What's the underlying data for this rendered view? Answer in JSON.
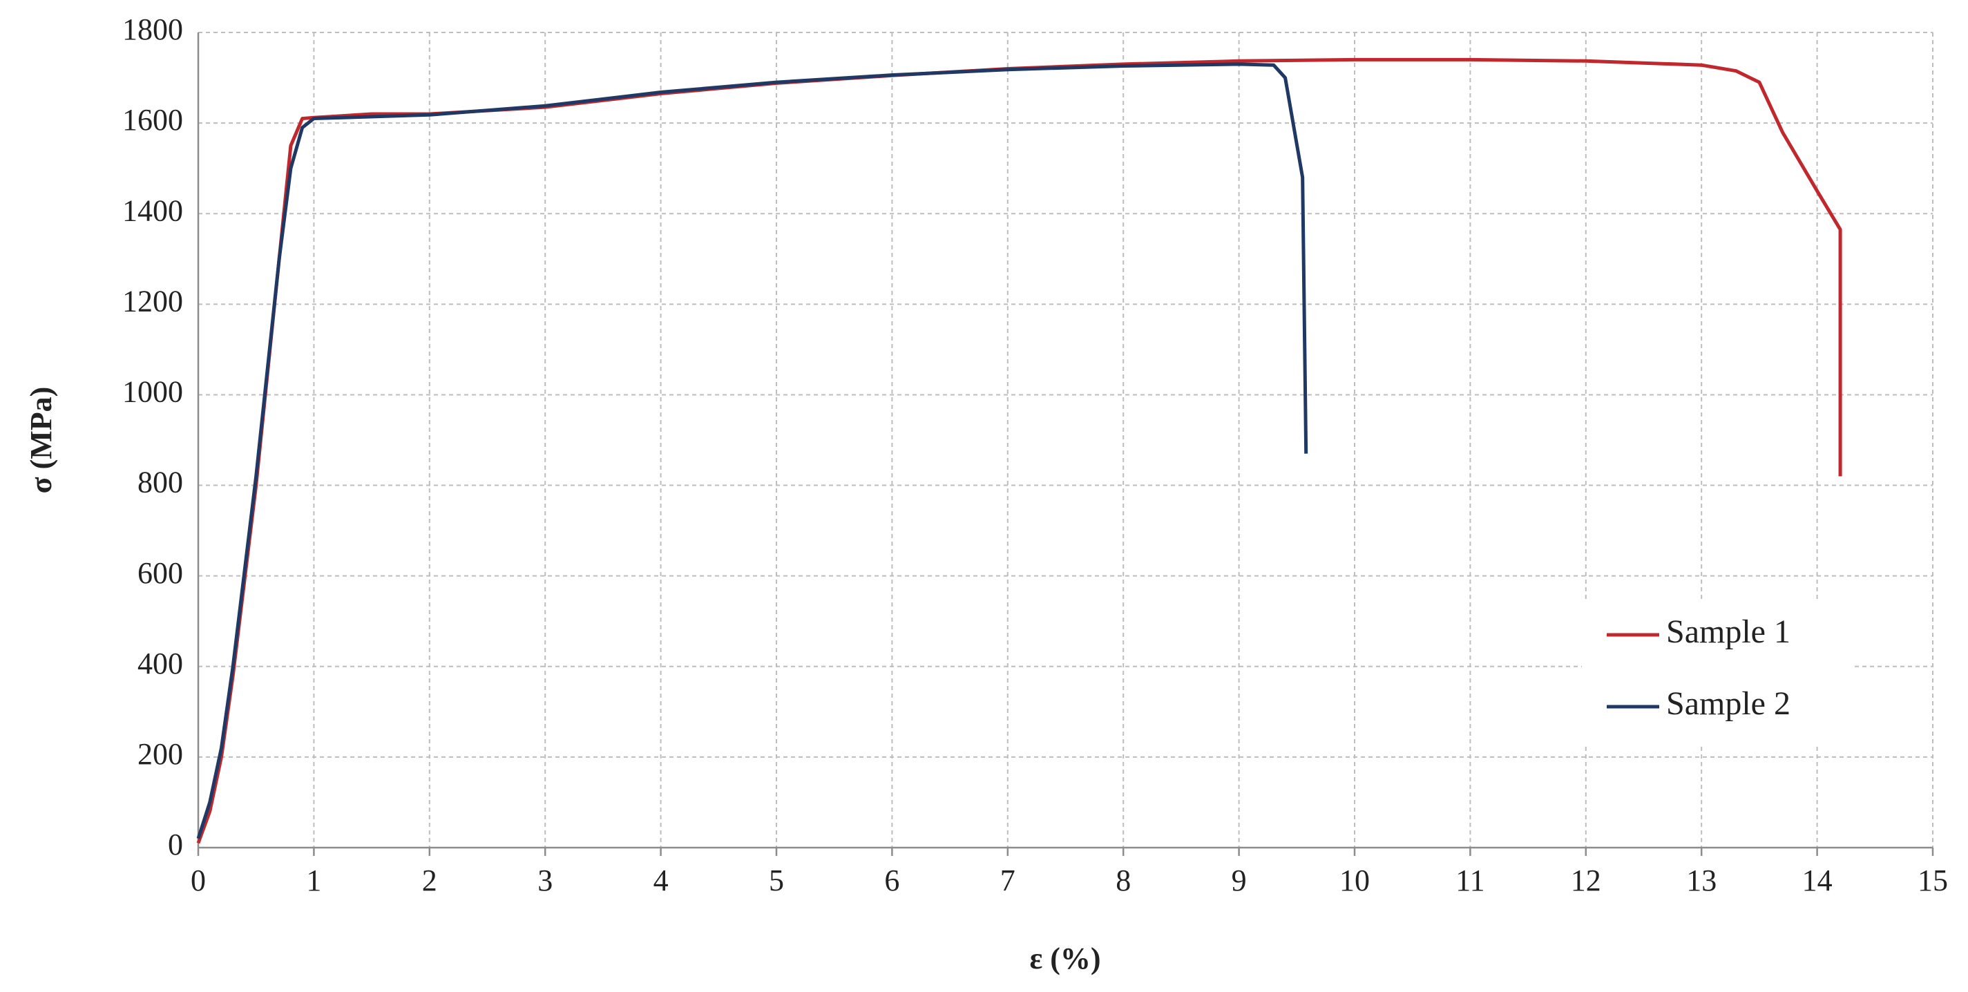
{
  "chart_data": {
    "type": "line",
    "x_label": "ε (%)",
    "y_label": "σ (MPa)",
    "xlim": [
      0,
      15
    ],
    "xticks": [
      0,
      1,
      2,
      3,
      4,
      5,
      6,
      7,
      8,
      9,
      10,
      11,
      12,
      13,
      14,
      15
    ],
    "ylim": [
      0,
      1800
    ],
    "yticks": [
      0,
      200,
      400,
      600,
      800,
      1000,
      1200,
      1400,
      1600,
      1800
    ],
    "grid": true,
    "legend": "right",
    "series": [
      {
        "name": "Sample 1",
        "color": "#c0282d",
        "x": [
          0,
          0.1,
          0.2,
          0.3,
          0.5,
          0.7,
          0.8,
          0.9,
          1,
          1.5,
          2,
          3,
          4,
          5,
          6,
          7,
          8,
          9,
          10,
          11,
          12,
          13,
          13.3,
          13.5,
          13.7,
          14,
          14.2,
          14.2
        ],
        "values": [
          10,
          80,
          200,
          380,
          800,
          1300,
          1550,
          1610,
          1612,
          1620,
          1620,
          1635,
          1665,
          1688,
          1705,
          1720,
          1730,
          1737,
          1740,
          1740,
          1737,
          1728,
          1715,
          1690,
          1580,
          1450,
          1365,
          820
        ]
      },
      {
        "name": "Sample 2",
        "color": "#1f3864",
        "x": [
          0,
          0.1,
          0.2,
          0.3,
          0.5,
          0.7,
          0.8,
          0.9,
          1,
          2,
          3,
          4,
          5,
          6,
          7,
          8,
          9,
          9.3,
          9.4,
          9.55,
          9.58
        ],
        "values": [
          20,
          100,
          220,
          400,
          820,
          1300,
          1500,
          1590,
          1610,
          1618,
          1638,
          1668,
          1690,
          1706,
          1718,
          1726,
          1730,
          1728,
          1700,
          1480,
          870
        ]
      }
    ]
  }
}
